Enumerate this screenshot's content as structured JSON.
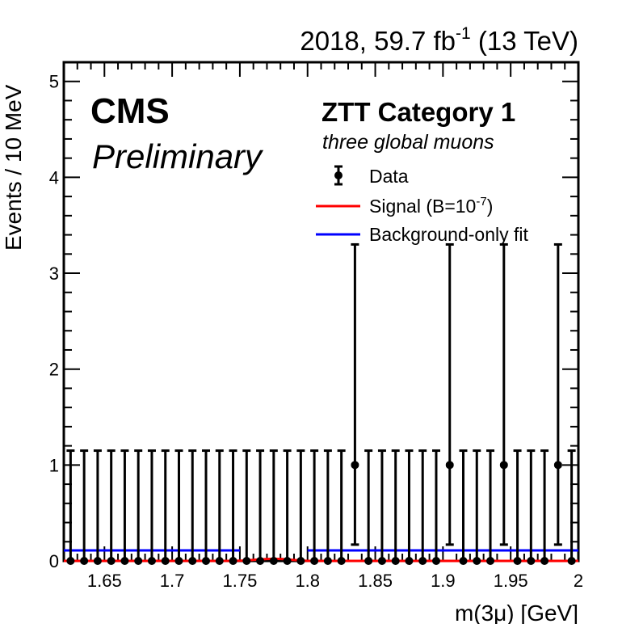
{
  "chart_data": {
    "type": "scatter",
    "header": {
      "lumi_prefix": "2018, 59.7 fb",
      "lumi_exp": "-1",
      "lumi_suffix": " (13 TeV)"
    },
    "labels": {
      "cms": "CMS",
      "preliminary": "Preliminary",
      "category_title": "ZTT Category 1",
      "category_subtitle": "three global muons"
    },
    "xlabel": "m(3μ) [GeV]",
    "ylabel": "Events / 10 MeV",
    "xlim": [
      1.62,
      2.0
    ],
    "ylim": [
      0,
      5.2
    ],
    "x_ticks": [
      "1.65",
      "1.7",
      "1.75",
      "1.8",
      "1.85",
      "1.9",
      "1.95",
      "2"
    ],
    "y_ticks": [
      "0",
      "1",
      "2",
      "3",
      "4",
      "5"
    ],
    "legend": {
      "position": "top-right",
      "entries": [
        {
          "label": "Data",
          "kind": "marker",
          "color": "#000000"
        },
        {
          "label_main": "Signal (B=10",
          "label_exp": "-7",
          "label_tail": ")",
          "kind": "line",
          "color": "#ff0000"
        },
        {
          "label": "Background-only fit",
          "kind": "line",
          "color": "#0000ff"
        }
      ]
    },
    "series": [
      {
        "name": "Data",
        "color": "#000000",
        "x": [
          1.625,
          1.635,
          1.645,
          1.655,
          1.665,
          1.675,
          1.685,
          1.695,
          1.705,
          1.715,
          1.725,
          1.735,
          1.745,
          1.755,
          1.765,
          1.775,
          1.785,
          1.795,
          1.805,
          1.815,
          1.825,
          1.835,
          1.845,
          1.855,
          1.865,
          1.875,
          1.885,
          1.895,
          1.905,
          1.915,
          1.925,
          1.935,
          1.945,
          1.955,
          1.965,
          1.975,
          1.985,
          1.995
        ],
        "y": [
          0,
          0,
          0,
          0,
          0,
          0,
          0,
          0,
          0,
          0,
          0,
          0,
          0,
          0,
          0,
          0,
          0,
          0,
          0,
          0,
          0,
          1,
          0,
          0,
          0,
          0,
          0,
          0,
          1,
          0,
          0,
          0,
          1,
          0,
          0,
          0,
          1,
          0
        ],
        "err_low": [
          0,
          0,
          0,
          0,
          0,
          0,
          0,
          0,
          0,
          0,
          0,
          0,
          0,
          0,
          0,
          0,
          0,
          0,
          0,
          0,
          0,
          0.83,
          0,
          0,
          0,
          0,
          0,
          0,
          0.83,
          0,
          0,
          0,
          0.83,
          0,
          0,
          0,
          0.83,
          0
        ],
        "err_high": [
          1.15,
          1.15,
          1.15,
          1.15,
          1.15,
          1.15,
          1.15,
          1.15,
          1.15,
          1.15,
          1.15,
          1.15,
          1.15,
          1.15,
          1.15,
          1.15,
          1.15,
          1.15,
          1.15,
          1.15,
          1.15,
          2.3,
          1.15,
          1.15,
          1.15,
          1.15,
          1.15,
          1.15,
          2.3,
          1.15,
          1.15,
          1.15,
          2.3,
          1.15,
          1.15,
          1.15,
          2.3,
          1.15
        ]
      },
      {
        "name": "Background-only fit",
        "color": "#0000ff",
        "segments": [
          {
            "x": [
              1.62,
              1.75
            ],
            "y": [
              0.11,
              0.11
            ]
          },
          {
            "x": [
              1.8,
              2.0
            ],
            "y": [
              0.11,
              0.11
            ]
          }
        ]
      },
      {
        "name": "Signal",
        "color": "#ff0000",
        "x": [
          1.62,
          1.745,
          1.752,
          1.758,
          1.764,
          1.77,
          1.776,
          1.782,
          1.788,
          1.794,
          1.8,
          2.0
        ],
        "y": [
          0,
          0,
          0.003,
          0.008,
          0.015,
          0.02,
          0.022,
          0.019,
          0.012,
          0.005,
          0,
          0
        ]
      }
    ],
    "grid": false
  }
}
